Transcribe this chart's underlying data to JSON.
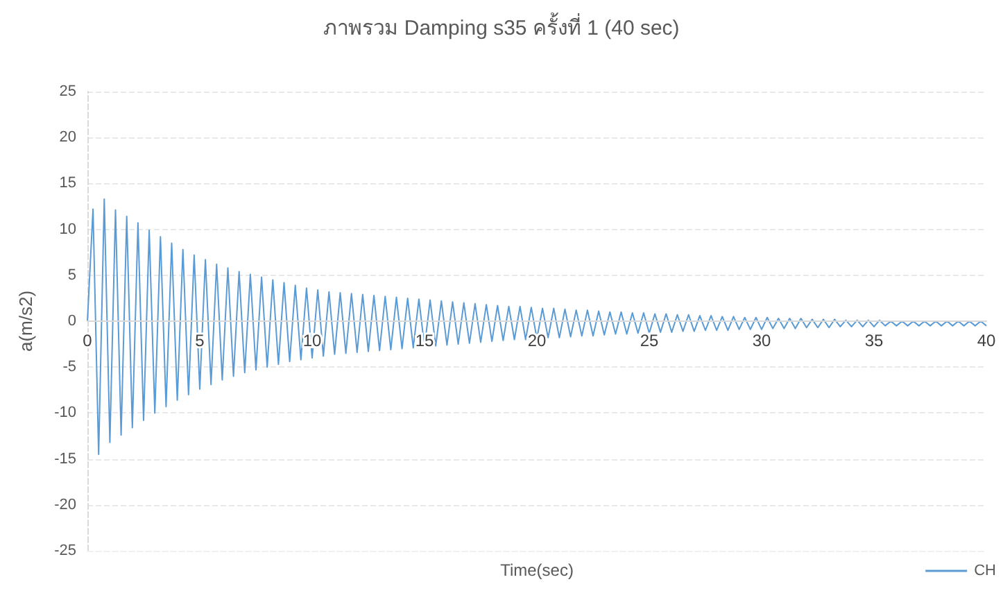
{
  "chart_data": {
    "type": "line",
    "title": "ภาพรวม Damping s35 ครั้งที่ 1 (40 sec)",
    "xlabel": "Time(sec)",
    "ylabel": "a(m/s2)",
    "xlim": [
      0,
      40
    ],
    "xticks": [
      0,
      5,
      10,
      15,
      20,
      25,
      30,
      35,
      40
    ],
    "ylim": [
      -25,
      25
    ],
    "yticks": [
      -25,
      -20,
      -15,
      -10,
      -5,
      0,
      5,
      10,
      15,
      20,
      25
    ],
    "grid": "y",
    "legend": "bottom right",
    "marker": "none",
    "line_style": "solid",
    "series": [
      {
        "name": "CH",
        "color": "#5b9bd5",
        "x": [
          0,
          0.25,
          0.5,
          0.75,
          1,
          1.25,
          1.5,
          1.75,
          2,
          2.25,
          2.5,
          2.75,
          3,
          3.25,
          3.5,
          3.75,
          4,
          4.25,
          4.5,
          4.75,
          5,
          5.25,
          5.5,
          5.75,
          6,
          6.25,
          6.5,
          6.75,
          7,
          7.25,
          7.5,
          7.75,
          8,
          8.25,
          8.5,
          8.75,
          9,
          9.25,
          9.5,
          9.75,
          10,
          10.25,
          10.5,
          10.75,
          11,
          11.25,
          11.5,
          11.75,
          12,
          12.25,
          12.5,
          12.75,
          13,
          13.25,
          13.5,
          13.75,
          14,
          14.25,
          14.5,
          14.75,
          15,
          15.25,
          15.5,
          15.75,
          16,
          16.25,
          16.5,
          16.75,
          17,
          17.25,
          17.5,
          17.75,
          18,
          18.25,
          18.5,
          18.75,
          19,
          19.25,
          19.5,
          19.75,
          20,
          20.25,
          20.5,
          20.75,
          21,
          21.25,
          21.5,
          21.75,
          22,
          22.25,
          22.5,
          22.75,
          23,
          23.25,
          23.5,
          23.75,
          24,
          24.25,
          24.5,
          24.75,
          25,
          25.25,
          25.5,
          25.75,
          26,
          26.25,
          26.5,
          26.75,
          27,
          27.25,
          27.5,
          27.75,
          28,
          28.25,
          28.5,
          28.75,
          29,
          29.25,
          29.5,
          29.75,
          30,
          30.25,
          30.5,
          30.75,
          31,
          31.25,
          31.5,
          31.75,
          32,
          32.25,
          32.5,
          32.75,
          33,
          33.25,
          33.5,
          33.75,
          34,
          34.25,
          34.5,
          34.75,
          35,
          35.25,
          35.5,
          35.75,
          36,
          36.25,
          36.5,
          36.75,
          37,
          37.25,
          37.5,
          37.75,
          38,
          38.25,
          38.5,
          38.75,
          39,
          39.25,
          39.5,
          39.75,
          40
        ],
        "values": [
          0,
          12.2,
          -14.5,
          13.3,
          -13.2,
          12.1,
          -12.4,
          11.4,
          -11.6,
          10.7,
          -10.8,
          9.9,
          -10.0,
          9.2,
          -9.3,
          8.5,
          -8.6,
          7.8,
          -8.0,
          7.2,
          -7.4,
          6.7,
          -6.9,
          6.2,
          -6.4,
          5.8,
          -6.0,
          5.4,
          -5.6,
          5.1,
          -5.3,
          4.8,
          -5.0,
          4.5,
          -4.7,
          4.2,
          -4.4,
          3.9,
          -4.2,
          3.6,
          -4.0,
          3.4,
          -3.8,
          3.2,
          -3.6,
          3.1,
          -3.5,
          3.0,
          -3.4,
          2.9,
          -3.3,
          2.8,
          -3.2,
          2.7,
          -3.1,
          2.6,
          -3.0,
          2.5,
          -2.9,
          2.4,
          -2.8,
          2.3,
          -2.7,
          2.2,
          -2.6,
          2.1,
          -2.5,
          2.0,
          -2.4,
          1.9,
          -2.3,
          1.8,
          -2.2,
          1.7,
          -2.1,
          1.6,
          -2.0,
          1.6,
          -2.0,
          1.5,
          -1.9,
          1.4,
          -1.8,
          1.4,
          -1.8,
          1.3,
          -1.7,
          1.2,
          -1.6,
          1.2,
          -1.6,
          1.1,
          -1.5,
          1.0,
          -1.4,
          1.0,
          -1.4,
          0.9,
          -1.3,
          0.9,
          -1.3,
          0.8,
          -1.2,
          0.8,
          -1.2,
          0.7,
          -1.1,
          0.7,
          -1.1,
          0.6,
          -1.0,
          0.6,
          -1.0,
          0.5,
          -1.0,
          0.5,
          -0.9,
          0.4,
          -0.9,
          0.4,
          -0.9,
          0.4,
          -0.8,
          0.3,
          -0.8,
          0.3,
          -0.8,
          0.3,
          -0.7,
          0.2,
          -0.7,
          0.2,
          -0.7,
          0.2,
          -0.6,
          0.1,
          -0.6,
          0.1,
          -0.6,
          0.1,
          -0.6,
          0.1,
          -0.5,
          0,
          -0.5,
          0,
          -0.5,
          0,
          -0.5,
          0,
          -0.5,
          0,
          -0.5,
          0,
          -0.5,
          0,
          -0.5,
          0,
          -0.5,
          0,
          -0.5
        ]
      }
    ]
  }
}
